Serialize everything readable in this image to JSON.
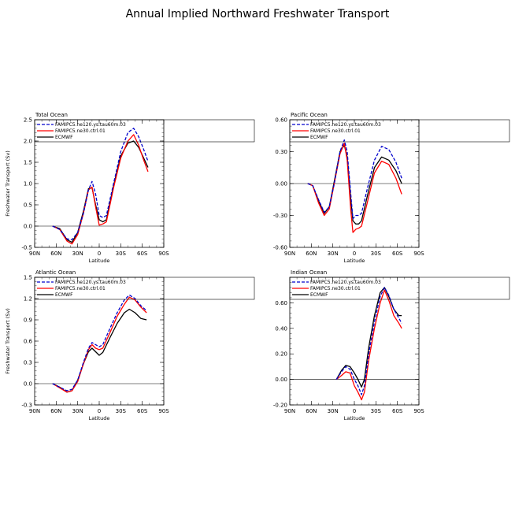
{
  "figure": {
    "title": "Annual Implied Northward Freshwater Transport"
  },
  "chart_data": [
    {
      "type": "line",
      "title": "Total Ocean",
      "xlabel": "Latitude",
      "ylabel": "Freshwater Transport (Sv)",
      "xlim": [
        90,
        -90
      ],
      "ylim": [
        -0.5,
        2.5
      ],
      "yticks": [
        "-0.5",
        "0.0",
        "0.5",
        "1.0",
        "1.5",
        "2.0",
        "2.5"
      ],
      "ytick_values": [
        -0.5,
        0,
        0.5,
        1.0,
        1.5,
        2.0,
        2.5
      ],
      "xticks": [
        "90N",
        "60N",
        "30N",
        "0",
        "30S",
        "60S",
        "90S"
      ],
      "xtick_values": [
        90,
        60,
        30,
        0,
        -30,
        -60,
        -90
      ],
      "legend_position": "top",
      "series": [
        {
          "name": "FAMIPC5.ne120.ys.tau60m.03",
          "color": "#0000cc",
          "dash": "dashed",
          "x": [
            65,
            55,
            45,
            38,
            30,
            22,
            15,
            10,
            5,
            0,
            -5,
            -10,
            -20,
            -30,
            -40,
            -48,
            -55,
            -62,
            -68
          ],
          "y": [
            0.0,
            -0.08,
            -0.3,
            -0.32,
            -0.15,
            0.3,
            0.85,
            1.05,
            0.75,
            0.25,
            0.2,
            0.25,
            1.0,
            1.75,
            2.2,
            2.3,
            2.1,
            1.8,
            1.52
          ]
        },
        {
          "name": "FAMIPC5.ne30.ctrl.01",
          "color": "#ff0000",
          "dash": "solid",
          "x": [
            65,
            55,
            45,
            38,
            30,
            22,
            15,
            10,
            5,
            0,
            -5,
            -10,
            -20,
            -30,
            -40,
            -48,
            -55,
            -62,
            -68
          ],
          "y": [
            0.0,
            -0.08,
            -0.35,
            -0.42,
            -0.2,
            0.3,
            0.85,
            0.92,
            0.45,
            0.02,
            0.05,
            0.1,
            0.9,
            1.6,
            2.0,
            2.15,
            1.9,
            1.55,
            1.28
          ]
        },
        {
          "name": "ECMWF",
          "color": "#000000",
          "dash": "solid",
          "x": [
            65,
            55,
            45,
            38,
            30,
            22,
            15,
            10,
            5,
            0,
            -5,
            -10,
            -20,
            -30,
            -40,
            -48,
            -55,
            -62,
            -68
          ],
          "y": [
            0.0,
            -0.06,
            -0.32,
            -0.38,
            -0.15,
            0.35,
            0.88,
            0.9,
            0.5,
            0.15,
            0.1,
            0.15,
            0.95,
            1.65,
            1.95,
            2.0,
            1.85,
            1.6,
            1.38
          ]
        }
      ],
      "zero_line": 0
    },
    {
      "type": "line",
      "title": "Pacific Ocean",
      "xlabel": "Latitude",
      "ylabel": "",
      "xlim": [
        90,
        -90
      ],
      "ylim": [
        -0.6,
        0.6
      ],
      "yticks": [
        "-0.60",
        "-0.30",
        "0.00",
        "0.30",
        "0.60"
      ],
      "ytick_values": [
        -0.6,
        -0.3,
        0.0,
        0.3,
        0.6
      ],
      "xticks": [
        "90N",
        "60N",
        "30N",
        "0",
        "30S",
        "60S",
        "90S"
      ],
      "xtick_values": [
        90,
        60,
        30,
        0,
        -30,
        -60,
        -90
      ],
      "legend_position": "top",
      "series": [
        {
          "name": "FAMIPC5.ne120.ys.tau60m.03",
          "color": "#0000cc",
          "dash": "dashed",
          "x": [
            65,
            58,
            50,
            42,
            35,
            28,
            20,
            14,
            10,
            5,
            2,
            -2,
            -6,
            -10,
            -18,
            -28,
            -38,
            -48,
            -58,
            -66
          ],
          "y": [
            0.0,
            -0.02,
            -0.15,
            -0.27,
            -0.22,
            0.0,
            0.3,
            0.41,
            0.3,
            -0.1,
            -0.33,
            -0.3,
            -0.3,
            -0.28,
            -0.05,
            0.22,
            0.35,
            0.32,
            0.2,
            0.05
          ]
        },
        {
          "name": "FAMIPC5.ne30.ctrl.01",
          "color": "#ff0000",
          "dash": "solid",
          "x": [
            65,
            58,
            50,
            42,
            35,
            28,
            20,
            14,
            10,
            5,
            2,
            -2,
            -6,
            -10,
            -18,
            -28,
            -38,
            -48,
            -58,
            -66
          ],
          "y": [
            0.0,
            -0.02,
            -0.18,
            -0.3,
            -0.24,
            0.0,
            0.28,
            0.38,
            0.22,
            -0.25,
            -0.46,
            -0.43,
            -0.42,
            -0.4,
            -0.18,
            0.1,
            0.21,
            0.18,
            0.05,
            -0.1
          ]
        },
        {
          "name": "ECMWF",
          "color": "#000000",
          "dash": "solid",
          "x": [
            65,
            58,
            50,
            42,
            35,
            28,
            20,
            14,
            10,
            5,
            2,
            -2,
            -6,
            -10,
            -18,
            -28,
            -38,
            -48,
            -58,
            -66
          ],
          "y": [
            0.0,
            -0.02,
            -0.16,
            -0.28,
            -0.22,
            0.02,
            0.3,
            0.36,
            0.25,
            -0.15,
            -0.35,
            -0.38,
            -0.38,
            -0.35,
            -0.12,
            0.15,
            0.25,
            0.22,
            0.12,
            0.0
          ]
        }
      ],
      "zero_line": 0
    },
    {
      "type": "line",
      "title": "Atlantic Ocean",
      "xlabel": "Latitude",
      "ylabel": "Freshwater Transport (Sv)",
      "xlim": [
        90,
        -90
      ],
      "ylim": [
        -0.3,
        1.5
      ],
      "yticks": [
        "-0.3",
        "0.0",
        "0.3",
        "0.6",
        "0.9",
        "1.2",
        "1.5"
      ],
      "ytick_values": [
        -0.3,
        0.0,
        0.3,
        0.6,
        0.9,
        1.2,
        1.5
      ],
      "xticks": [
        "90N",
        "60N",
        "30N",
        "0",
        "30S",
        "60S",
        "90S"
      ],
      "xtick_values": [
        90,
        60,
        30,
        0,
        -30,
        -60,
        -90
      ],
      "legend_position": "top",
      "series": [
        {
          "name": "FAMIPC5.ne120.ys.tau60m.03",
          "color": "#0000cc",
          "dash": "dashed",
          "x": [
            65,
            55,
            45,
            38,
            30,
            22,
            15,
            10,
            5,
            0,
            -5,
            -15,
            -25,
            -35,
            -42,
            -50,
            -58,
            -66
          ],
          "y": [
            0.0,
            -0.05,
            -0.1,
            -0.08,
            0.05,
            0.3,
            0.5,
            0.58,
            0.55,
            0.52,
            0.55,
            0.78,
            1.0,
            1.18,
            1.25,
            1.2,
            1.1,
            1.03
          ]
        },
        {
          "name": "FAMIPC5.ne30.ctrl.01",
          "color": "#ff0000",
          "dash": "solid",
          "x": [
            65,
            55,
            45,
            38,
            30,
            22,
            15,
            10,
            5,
            0,
            -5,
            -15,
            -25,
            -35,
            -42,
            -50,
            -58,
            -66
          ],
          "y": [
            0.0,
            -0.06,
            -0.12,
            -0.1,
            0.03,
            0.28,
            0.48,
            0.55,
            0.5,
            0.48,
            0.5,
            0.72,
            0.95,
            1.12,
            1.22,
            1.18,
            1.08,
            1.0
          ]
        },
        {
          "name": "ECMWF",
          "color": "#000000",
          "dash": "solid",
          "x": [
            65,
            55,
            45,
            38,
            30,
            22,
            15,
            10,
            5,
            0,
            -5,
            -15,
            -25,
            -35,
            -42,
            -50,
            -58,
            -66
          ],
          "y": [
            0.0,
            -0.05,
            -0.12,
            -0.1,
            0.05,
            0.28,
            0.45,
            0.5,
            0.45,
            0.4,
            0.44,
            0.65,
            0.85,
            1.0,
            1.05,
            1.0,
            0.92,
            0.9
          ]
        }
      ],
      "zero_line": 0
    },
    {
      "type": "line",
      "title": "Indian Ocean",
      "xlabel": "Latitude",
      "ylabel": "",
      "xlim": [
        90,
        -90
      ],
      "ylim": [
        -0.2,
        0.8
      ],
      "yticks": [
        "-0.20",
        "0.00",
        "0.20",
        "0.40",
        "0.60"
      ],
      "ytick_values": [
        -0.2,
        0.0,
        0.2,
        0.4,
        0.6
      ],
      "xticks": [
        "90N",
        "60N",
        "30N",
        "0",
        "30S",
        "60S",
        "90S"
      ],
      "xtick_values": [
        90,
        60,
        30,
        0,
        -30,
        -60,
        -90
      ],
      "legend_position": "top",
      "series": [
        {
          "name": "FAMIPC5.ne120.ys.tau60m.03",
          "color": "#0000cc",
          "dash": "dashed",
          "x": [
            25,
            18,
            12,
            6,
            0,
            -5,
            -10,
            -14,
            -20,
            -28,
            -36,
            -42,
            -48,
            -55,
            -62,
            -66
          ],
          "y": [
            0.0,
            0.06,
            0.1,
            0.08,
            0.0,
            -0.05,
            -0.12,
            -0.05,
            0.2,
            0.45,
            0.65,
            0.72,
            0.66,
            0.55,
            0.48,
            0.44
          ]
        },
        {
          "name": "FAMIPC5.ne30.ctrl.01",
          "color": "#ff0000",
          "dash": "solid",
          "x": [
            25,
            18,
            12,
            6,
            0,
            -5,
            -10,
            -14,
            -20,
            -28,
            -36,
            -42,
            -48,
            -55,
            -62,
            -66
          ],
          "y": [
            0.0,
            0.03,
            0.06,
            0.05,
            -0.05,
            -0.1,
            -0.16,
            -0.1,
            0.15,
            0.4,
            0.6,
            0.7,
            0.62,
            0.5,
            0.44,
            0.4
          ]
        },
        {
          "name": "ECMWF",
          "color": "#000000",
          "dash": "solid",
          "x": [
            25,
            18,
            12,
            6,
            0,
            -5,
            -10,
            -14,
            -20,
            -28,
            -36,
            -42,
            -48,
            -55,
            -62,
            -66
          ],
          "y": [
            0.0,
            0.07,
            0.11,
            0.1,
            0.05,
            0.0,
            -0.06,
            0.0,
            0.25,
            0.5,
            0.68,
            0.72,
            0.65,
            0.55,
            0.5,
            0.5
          ]
        }
      ],
      "zero_line": 0
    }
  ]
}
